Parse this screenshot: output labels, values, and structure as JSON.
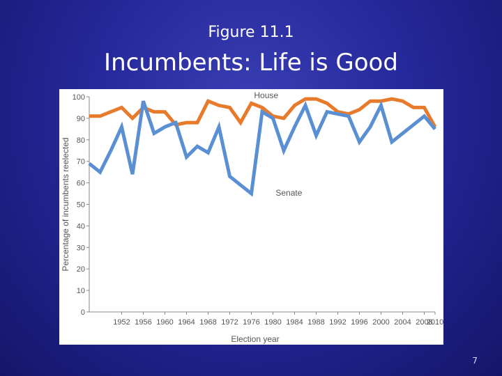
{
  "slide": {
    "subtitle": "Figure 11.1",
    "title": "Incumbents:  Life is Good",
    "page_number": "7"
  },
  "colors": {
    "house": "#e87a2c",
    "senate": "#5b8fd3",
    "axis": "#888888",
    "text": "#555555"
  },
  "chart_data": {
    "type": "line",
    "title": "",
    "xlabel": "Election year",
    "ylabel": "Percentage of incumbents reelected",
    "xlim": [
      1946,
      2010
    ],
    "ylim": [
      0,
      100
    ],
    "yticks": [
      0,
      10,
      20,
      30,
      40,
      50,
      60,
      70,
      80,
      90,
      100
    ],
    "xticks": [
      1952,
      1956,
      1960,
      1964,
      1968,
      1972,
      1976,
      1980,
      1984,
      1988,
      1992,
      1996,
      2000,
      2004,
      2008,
      2010
    ],
    "series": [
      {
        "name": "House",
        "x": [
          1946,
          1948,
          1950,
          1952,
          1954,
          1956,
          1958,
          1960,
          1962,
          1964,
          1966,
          1968,
          1970,
          1972,
          1974,
          1976,
          1978,
          1980,
          1982,
          1984,
          1986,
          1988,
          1990,
          1992,
          1994,
          1996,
          1998,
          2000,
          2002,
          2004,
          2006,
          2008,
          2010
        ],
        "values": [
          91,
          91,
          93,
          95,
          90,
          95,
          93,
          93,
          87,
          88,
          88,
          98,
          96,
          95,
          88,
          97,
          95,
          91,
          90,
          96,
          99,
          99,
          97,
          93,
          92,
          94,
          98,
          98,
          99,
          98,
          95,
          95,
          86
        ]
      },
      {
        "name": "Senate",
        "x": [
          1946,
          1948,
          1950,
          1952,
          1954,
          1956,
          1958,
          1960,
          1962,
          1964,
          1966,
          1968,
          1970,
          1972,
          1974,
          1976,
          1978,
          1980,
          1982,
          1984,
          1986,
          1988,
          1990,
          1992,
          1994,
          1996,
          1998,
          2000,
          2002,
          2004,
          2006,
          2008,
          2010
        ],
        "values": [
          69,
          65,
          75,
          86,
          64,
          98,
          83,
          86,
          88,
          72,
          77,
          74,
          86,
          63,
          59,
          55,
          93,
          90,
          75,
          86,
          96,
          82,
          93,
          92,
          91,
          79,
          86,
          96,
          79,
          83,
          87,
          91,
          85
        ]
      }
    ],
    "annotations": [
      {
        "text": "House",
        "series": "House"
      },
      {
        "text": "Senate",
        "series": "Senate"
      }
    ]
  }
}
